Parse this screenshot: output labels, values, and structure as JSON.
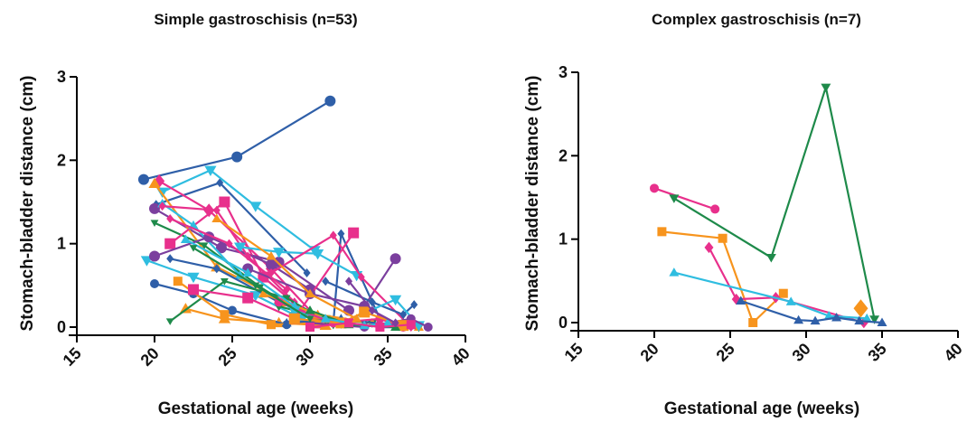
{
  "chart_data": [
    {
      "type": "line",
      "title": "Simple gastroschisis (n=53)",
      "xlabel": "Gestational age (weeks)",
      "ylabel": "Stomach-bladder distance (cm)",
      "xlim": [
        15,
        40
      ],
      "ylim": [
        0,
        3
      ],
      "xticks": [
        "15",
        "20",
        "25",
        "30",
        "35",
        "40"
      ],
      "yticks": [
        "0",
        "1",
        "2",
        "3"
      ],
      "grid": false,
      "series": [
        {
          "color": "#2f5fa8",
          "marker": "circle",
          "size": 6,
          "x": [
            19.3,
            25.3,
            31.3
          ],
          "y": [
            1.77,
            2.04,
            2.71
          ]
        },
        {
          "color": "#2f5fa8",
          "marker": "diamond",
          "size": 4,
          "x": [
            20.1,
            24.2,
            29.8
          ],
          "y": [
            1.47,
            1.73,
            0.65
          ]
        },
        {
          "color": "#2fbde0",
          "marker": "triangle-down",
          "size": 6,
          "x": [
            20.5,
            23.6,
            26.5,
            30.3
          ],
          "y": [
            1.62,
            1.88,
            1.45,
            0.92
          ]
        },
        {
          "color": "#e8308c",
          "marker": "diamond",
          "size": 6,
          "x": [
            20.3,
            23.5,
            27.5,
            30.5
          ],
          "y": [
            1.75,
            1.4,
            0.7,
            0.1
          ]
        },
        {
          "color": "#7b3f9e",
          "marker": "circle",
          "size": 6,
          "x": [
            20.0,
            24.3,
            28.0,
            32.5
          ],
          "y": [
            1.42,
            0.95,
            0.78,
            0.2
          ]
        },
        {
          "color": "#f7941d",
          "marker": "triangle",
          "size": 6,
          "x": [
            20.0,
            24.0,
            28.5
          ],
          "y": [
            1.72,
            0.72,
            0.3
          ]
        },
        {
          "color": "#1e8a4a",
          "marker": "triangle-down",
          "size": 4,
          "x": [
            20.0,
            23.2,
            26.8,
            29.6
          ],
          "y": [
            1.25,
            0.98,
            0.48,
            0.15
          ]
        },
        {
          "color": "#e8308c",
          "marker": "square",
          "size": 6,
          "x": [
            21.0,
            24.5,
            27.0,
            30.5
          ],
          "y": [
            1.0,
            1.5,
            0.6,
            0.05
          ]
        },
        {
          "color": "#2fbde0",
          "marker": "triangle",
          "size": 5,
          "x": [
            20.5,
            22.5,
            25.5,
            29.0
          ],
          "y": [
            1.48,
            1.22,
            0.62,
            0.2
          ]
        },
        {
          "color": "#2fbde0",
          "marker": "triangle-down",
          "size": 6,
          "x": [
            19.5,
            22.5,
            26.5,
            29.5
          ],
          "y": [
            0.8,
            0.6,
            0.38,
            0.1
          ]
        },
        {
          "color": "#7b3f9e",
          "marker": "circle",
          "size": 6,
          "x": [
            20.0,
            23.5,
            27.5,
            30.0
          ],
          "y": [
            0.85,
            1.08,
            0.75,
            0.45
          ]
        },
        {
          "color": "#e8308c",
          "marker": "diamond",
          "size": 4,
          "x": [
            20.5,
            24.0,
            26.0,
            29.0
          ],
          "y": [
            1.45,
            1.4,
            0.85,
            0.3
          ]
        },
        {
          "color": "#2f5fa8",
          "marker": "diamond",
          "size": 4,
          "x": [
            21.0,
            24.0,
            28.0,
            31.5,
            32.0,
            34.5
          ],
          "y": [
            0.82,
            0.7,
            0.3,
            0.05,
            1.12,
            0.1
          ]
        },
        {
          "color": "#f7941d",
          "marker": "triangle",
          "size": 6,
          "x": [
            22.0,
            24.5,
            28.0,
            31.0
          ],
          "y": [
            0.22,
            0.1,
            0.05,
            0.02
          ]
        },
        {
          "color": "#1e8a4a",
          "marker": "triangle-down",
          "size": 4,
          "x": [
            21.0,
            24.5,
            28.5,
            31.5
          ],
          "y": [
            0.07,
            0.55,
            0.35,
            0.02
          ]
        },
        {
          "color": "#2f5fa8",
          "marker": "circle",
          "size": 5,
          "x": [
            20.0,
            22.5,
            25.0,
            28.5
          ],
          "y": [
            0.52,
            0.4,
            0.2,
            0.03
          ]
        },
        {
          "color": "#f7941d",
          "marker": "square",
          "size": 5,
          "x": [
            21.5,
            24.5,
            27.5,
            30.5
          ],
          "y": [
            0.55,
            0.15,
            0.03,
            0.05
          ]
        },
        {
          "color": "#e8308c",
          "marker": "square",
          "size": 6,
          "x": [
            22.5,
            26.0,
            29.0,
            32.8
          ],
          "y": [
            0.45,
            0.35,
            0.1,
            1.13
          ]
        },
        {
          "color": "#7b3f9e",
          "marker": "circle",
          "size": 6,
          "x": [
            26.0,
            30.0,
            33.5,
            35.5
          ],
          "y": [
            0.7,
            0.4,
            0.25,
            0.82
          ]
        },
        {
          "color": "#2fbde0",
          "marker": "triangle-down",
          "size": 6,
          "x": [
            25.5,
            28.0,
            30.5,
            33.0
          ],
          "y": [
            0.96,
            0.9,
            0.88,
            0.62
          ]
        },
        {
          "color": "#e8308c",
          "marker": "diamond",
          "size": 4,
          "x": [
            27.5,
            31.5,
            33.3,
            36.5
          ],
          "y": [
            0.65,
            1.1,
            0.6,
            0.0
          ]
        },
        {
          "color": "#2f5fa8",
          "marker": "diamond",
          "size": 4,
          "x": [
            31.0,
            34.0,
            36.0,
            36.7
          ],
          "y": [
            0.55,
            0.3,
            0.15,
            0.27
          ]
        },
        {
          "color": "#1e8a4a",
          "marker": "triangle-down",
          "size": 5,
          "x": [
            28.0,
            31.0,
            34.0,
            37.0
          ],
          "y": [
            0.25,
            0.1,
            0.05,
            0.0
          ]
        },
        {
          "color": "#f7941d",
          "marker": "triangle",
          "size": 5,
          "x": [
            27.0,
            30.5,
            34.0,
            37.0
          ],
          "y": [
            0.4,
            0.15,
            0.05,
            0.0
          ]
        },
        {
          "color": "#2fbde0",
          "marker": "triangle-down",
          "size": 6,
          "x": [
            29.0,
            32.0,
            35.5,
            37.0
          ],
          "y": [
            0.2,
            0.05,
            0.33,
            0.02
          ]
        },
        {
          "color": "#7b3f9e",
          "marker": "circle",
          "size": 5,
          "x": [
            30.0,
            33.5,
            36.5,
            37.6
          ],
          "y": [
            0.05,
            0.0,
            0.1,
            0.0
          ]
        },
        {
          "color": "#2f5fa8",
          "marker": "triangle",
          "size": 5,
          "x": [
            28.5,
            32.0,
            35.0,
            36.5
          ],
          "y": [
            0.05,
            0.1,
            0.03,
            0.02
          ]
        },
        {
          "color": "#e8308c",
          "marker": "circle",
          "size": 5,
          "x": [
            28.0,
            31.5,
            34.5,
            36.0
          ],
          "y": [
            0.3,
            0.05,
            0.1,
            0.0
          ]
        },
        {
          "color": "#f7941d",
          "marker": "square",
          "size": 6,
          "x": [
            29.0,
            32.0,
            33.5,
            36.0
          ],
          "y": [
            0.1,
            0.05,
            0.18,
            0.02
          ]
        },
        {
          "color": "#1e8a4a",
          "marker": "triangle",
          "size": 5,
          "x": [
            30.0,
            32.5,
            35.5
          ],
          "y": [
            0.2,
            0.03,
            0.0
          ]
        },
        {
          "color": "#2fbde0",
          "marker": "triangle",
          "size": 5,
          "x": [
            31.0,
            33.5,
            35.0
          ],
          "y": [
            0.1,
            0.02,
            0.05
          ]
        },
        {
          "color": "#e8308c",
          "marker": "square",
          "size": 5,
          "x": [
            30.0,
            32.5,
            34.5,
            36.5
          ],
          "y": [
            0.0,
            0.05,
            0.0,
            0.03
          ]
        },
        {
          "color": "#7b3f9e",
          "marker": "diamond",
          "size": 4,
          "x": [
            32.5,
            34.0,
            35.5
          ],
          "y": [
            0.55,
            0.2,
            0.05
          ]
        },
        {
          "color": "#f7941d",
          "marker": "triangle",
          "size": 5,
          "x": [
            24.0,
            27.5,
            30.0,
            33.0
          ],
          "y": [
            1.3,
            0.85,
            0.4,
            0.1
          ]
        },
        {
          "color": "#e8308c",
          "marker": "diamond",
          "size": 4,
          "x": [
            21.0,
            24.8,
            28.5
          ],
          "y": [
            1.3,
            1.0,
            0.45
          ]
        },
        {
          "color": "#2fbde0",
          "marker": "triangle",
          "size": 5,
          "x": [
            22.0,
            26.0,
            29.0
          ],
          "y": [
            1.05,
            0.65,
            0.25
          ]
        },
        {
          "color": "#1e8a4a",
          "marker": "triangle-down",
          "size": 4,
          "x": [
            22.5,
            26.5,
            30.0
          ],
          "y": [
            0.95,
            0.5,
            0.1
          ]
        }
      ]
    },
    {
      "type": "line",
      "title": "Complex gastroschisis (n=7)",
      "xlabel": "Gestational age (weeks)",
      "ylabel": "Stomach-bladder distance (cm)",
      "xlim": [
        15,
        40
      ],
      "ylim": [
        0,
        3
      ],
      "xticks": [
        "15",
        "20",
        "25",
        "30",
        "35",
        "40"
      ],
      "yticks": [
        "0",
        "1",
        "2",
        "3"
      ],
      "grid": false,
      "series": [
        {
          "color": "#e8308c",
          "marker": "circle",
          "size": 5,
          "x": [
            20.0,
            24.0
          ],
          "y": [
            1.61,
            1.36
          ]
        },
        {
          "color": "#1e8a4a",
          "marker": "triangle-down",
          "size": 5,
          "x": [
            21.3,
            27.7,
            31.3,
            34.5
          ],
          "y": [
            1.49,
            0.78,
            2.82,
            0.04
          ]
        },
        {
          "color": "#f7941d",
          "marker": "square",
          "size": 5,
          "x": [
            20.5,
            24.5,
            26.5,
            28.5
          ],
          "y": [
            1.09,
            1.01,
            0.0,
            0.35
          ]
        },
        {
          "color": "#e8308c",
          "marker": "diamond",
          "size": 5,
          "x": [
            23.6,
            25.4,
            28.0,
            33.8
          ],
          "y": [
            0.9,
            0.28,
            0.3,
            0.0
          ]
        },
        {
          "color": "#2fbde0",
          "marker": "triangle",
          "size": 5,
          "x": [
            21.3,
            29.0,
            31.5,
            34.0
          ],
          "y": [
            0.6,
            0.25,
            0.08,
            0.05
          ]
        },
        {
          "color": "#2f5fa8",
          "marker": "triangle",
          "size": 5,
          "x": [
            25.7,
            29.5,
            30.6,
            32.0,
            33.5,
            35.0
          ],
          "y": [
            0.26,
            0.03,
            0.02,
            0.06,
            0.02,
            0.0
          ]
        },
        {
          "color": "#f7941d",
          "marker": "diamond",
          "size": 8,
          "x": [
            33.6
          ],
          "y": [
            0.17
          ]
        }
      ]
    }
  ]
}
